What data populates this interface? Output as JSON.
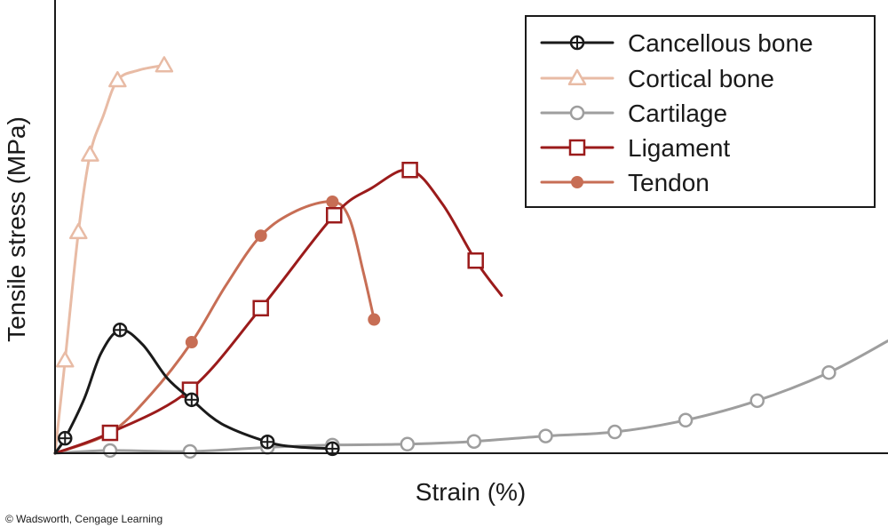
{
  "chart_data": {
    "type": "line",
    "title": "",
    "xlabel": "Strain (%)",
    "ylabel": "Tensile stress (MPa)",
    "xlim": [
      0,
      100
    ],
    "ylim": [
      0,
      100
    ],
    "grid": false,
    "legend_position": "top-right",
    "credit": "© Wadsworth, Cengage Learning",
    "series": [
      {
        "name": "Cancellous bone",
        "color": "#1a1a1a",
        "marker": "circle-plus",
        "x": [
          1.2,
          7.8,
          16.4,
          25.5,
          33.3
        ],
        "y": [
          3.3,
          27.2,
          11.8,
          2.5,
          1.0
        ],
        "curve": [
          [
            0,
            0
          ],
          [
            1.2,
            3.3
          ],
          [
            3.5,
            12
          ],
          [
            5.5,
            22
          ],
          [
            7.8,
            27.2
          ],
          [
            10.5,
            24
          ],
          [
            13.5,
            16.5
          ],
          [
            16.4,
            11.8
          ],
          [
            20,
            6.5
          ],
          [
            25.5,
            2.5
          ],
          [
            29,
            1.4
          ],
          [
            33.3,
            1.0
          ]
        ]
      },
      {
        "name": "Cortical bone",
        "color": "#e8bba5",
        "marker": "triangle",
        "x": [
          1.2,
          2.8,
          4.2,
          7.5,
          13.1
        ],
        "y": [
          20.5,
          48.8,
          65.9,
          82.3,
          85.6
        ],
        "curve": [
          [
            0,
            0
          ],
          [
            1.2,
            20.5
          ],
          [
            2.8,
            48.8
          ],
          [
            4.2,
            65.9
          ],
          [
            5.8,
            74.5
          ],
          [
            7.5,
            82.3
          ],
          [
            10,
            84.5
          ],
          [
            13.1,
            85.6
          ]
        ]
      },
      {
        "name": "Cartilage",
        "color": "#9e9e9e",
        "marker": "circle-open",
        "x": [
          6.6,
          16.2,
          25.5,
          33.3,
          42.3,
          50.3,
          58.9,
          67.2,
          75.7,
          84.3,
          92.9
        ],
        "y": [
          0.6,
          0.4,
          1.3,
          1.8,
          2.0,
          2.6,
          3.8,
          4.7,
          7.3,
          11.6,
          17.8
        ],
        "curve": [
          [
            0,
            0
          ],
          [
            6.6,
            0.6
          ],
          [
            16.2,
            0.4
          ],
          [
            25.5,
            1.3
          ],
          [
            33.3,
            1.8
          ],
          [
            42.3,
            2.0
          ],
          [
            50.3,
            2.6
          ],
          [
            58.9,
            3.8
          ],
          [
            67.2,
            4.7
          ],
          [
            75.7,
            7.3
          ],
          [
            84.3,
            11.6
          ],
          [
            92.9,
            17.8
          ],
          [
            100,
            24.8
          ]
        ]
      },
      {
        "name": "Ligament",
        "color": "#9b1b1b",
        "marker": "square-open",
        "x": [
          6.6,
          16.2,
          24.7,
          33.5,
          42.6,
          50.5
        ],
        "y": [
          4.5,
          14.0,
          32.0,
          52.5,
          62.5,
          42.5
        ],
        "curve": [
          [
            0,
            0
          ],
          [
            6.6,
            4.5
          ],
          [
            16.2,
            14.0
          ],
          [
            24.7,
            32.0
          ],
          [
            33.5,
            52.5
          ],
          [
            38,
            58.5
          ],
          [
            42.6,
            62.5
          ],
          [
            46.5,
            55
          ],
          [
            50.5,
            42.5
          ],
          [
            53.6,
            34.8
          ]
        ]
      },
      {
        "name": "Tendon",
        "color": "#c76e55",
        "marker": "circle-filled",
        "x": [
          16.4,
          24.7,
          33.3,
          38.3
        ],
        "y": [
          24.5,
          48.0,
          55.5,
          29.5
        ],
        "curve": [
          [
            0,
            0
          ],
          [
            6.6,
            4.5
          ],
          [
            11.5,
            13
          ],
          [
            16.4,
            24.5
          ],
          [
            20.5,
            37
          ],
          [
            24.7,
            48.0
          ],
          [
            29,
            53.5
          ],
          [
            33.3,
            55.5
          ],
          [
            35.3,
            52
          ],
          [
            37,
            40
          ],
          [
            38.3,
            29.5
          ]
        ]
      }
    ]
  }
}
